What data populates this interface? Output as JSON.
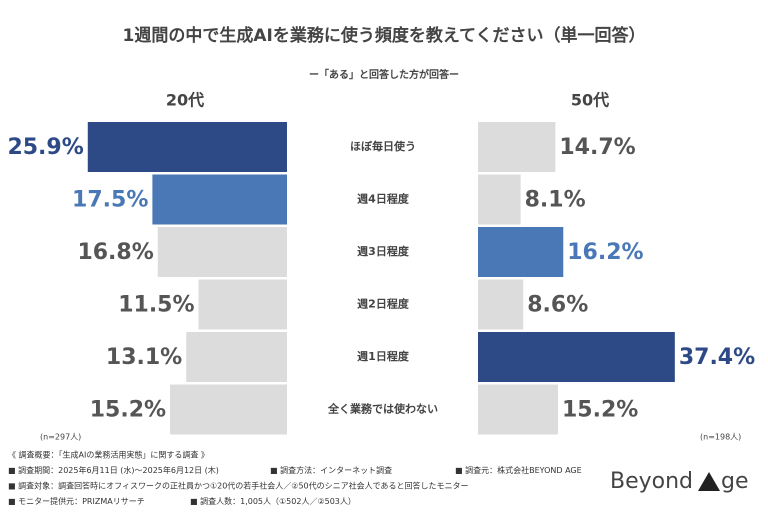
{
  "chart_data": {
    "type": "butterfly",
    "title": "1週間の中で生成AIを業務に使う頻度を教えてください（単一回答）",
    "subtitle": "ー「ある」と回答した方が回答ー",
    "categories": [
      "ほぼ毎日使う",
      "週4日程度",
      "週3日程度",
      "週2日程度",
      "週1日程度",
      "全く業務では使わない"
    ],
    "series": [
      {
        "name": "20代",
        "n_label": "(n=297人)",
        "xlim": [
          0,
          26
        ],
        "values": [
          25.9,
          17.5,
          16.8,
          11.5,
          13.1,
          15.2
        ],
        "value_labels": [
          "25.9%",
          "17.5%",
          "16.8%",
          "11.5%",
          "13.1%",
          "15.2%"
        ],
        "colors": [
          "#2d4a87",
          "#4a78b6",
          "#dcdcdc",
          "#dcdcdc",
          "#dcdcdc",
          "#dcdcdc"
        ]
      },
      {
        "name": "50代",
        "n_label": "(n=198人)",
        "xlim": [
          0,
          38
        ],
        "values": [
          14.7,
          8.1,
          16.2,
          8.6,
          37.4,
          15.2
        ],
        "value_labels": [
          "14.7%",
          "8.1%",
          "16.2%",
          "8.6%",
          "37.4%",
          "15.2%"
        ],
        "colors": [
          "#dcdcdc",
          "#dcdcdc",
          "#4a78b6",
          "#dcdcdc",
          "#2d4a87",
          "#dcdcdc"
        ]
      }
    ],
    "footnotes": [
      [
        "《 調査概要：「生成AIの業務活用実態」に関する調査 》"
      ],
      [
        "■ 調査期間：2025年6月11日 (水)〜2025年6月12日 (木)",
        "■ 調査方法：インターネット調査",
        "■ 調査元：株式会社BEYOND AGE"
      ],
      [
        "■ 調査対象：調査回答時にオフィスワークの正社員かつ①20代の若手社会人／②50代のシニア社会人であると回答したモニター"
      ],
      [
        "■ モニター提供元：PRIZMAリサーチ",
        "■ 調査人数：1,005人（①502人／②503人）"
      ]
    ],
    "logo": [
      "Beyond",
      "ge"
    ]
  }
}
